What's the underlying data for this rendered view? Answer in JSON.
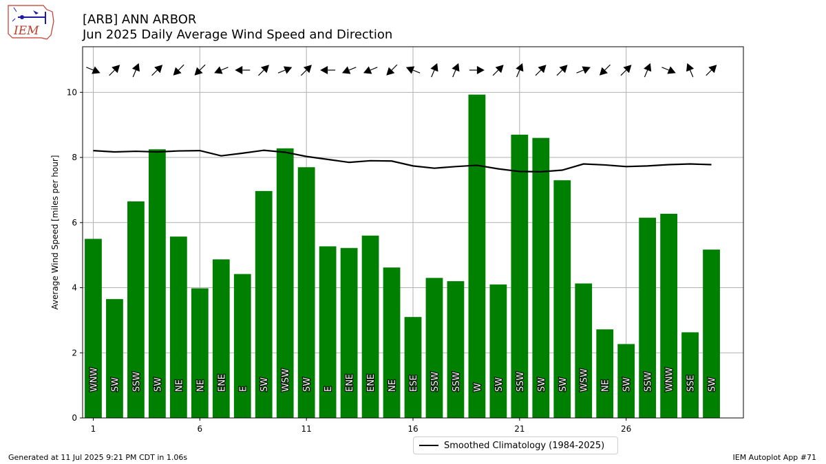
{
  "header": {
    "title_line1": "[ARB] ANN ARBOR",
    "title_line2": "Jun 2025 Daily Average Wind Speed and Direction",
    "logo_text": "IEM"
  },
  "footer": {
    "generated": "Generated at 11 Jul 2025 9:21 PM CDT in 1.06s",
    "app": "IEM Autoplot App #71"
  },
  "legend": {
    "climatology_label": "Smoothed Climatology (1984-2025)"
  },
  "colors": {
    "bar": "#008000",
    "climatology_line": "#000000",
    "grid": "#b0b0b0",
    "logo": "#c0392b"
  },
  "chart_data": {
    "type": "bar",
    "title": "[ARB] ANN ARBOR Jun 2025 Daily Average Wind Speed and Direction",
    "ylabel": "Average Wind Speed [miles per hour]",
    "xlabel": "",
    "xlim": [
      0.5,
      31.5
    ],
    "ylim": [
      0,
      11.4
    ],
    "xticks": [
      1,
      6,
      11,
      16,
      21,
      26
    ],
    "yticks": [
      0,
      2,
      4,
      6,
      8,
      10
    ],
    "grid": true,
    "legend_position": "bottom-center",
    "days": [
      1,
      2,
      3,
      4,
      5,
      6,
      7,
      8,
      9,
      10,
      11,
      12,
      13,
      14,
      15,
      16,
      17,
      18,
      19,
      20,
      21,
      22,
      23,
      24,
      25,
      26,
      27,
      28,
      29,
      30
    ],
    "values": [
      5.5,
      3.65,
      6.65,
      8.25,
      5.57,
      3.98,
      4.87,
      4.42,
      6.97,
      8.28,
      7.7,
      5.27,
      5.22,
      5.6,
      4.62,
      3.1,
      4.3,
      4.2,
      9.93,
      4.1,
      8.7,
      8.6,
      7.3,
      4.13,
      2.72,
      2.27,
      6.15,
      6.27,
      2.63,
      5.17
    ],
    "directions": [
      "WNW",
      "SW",
      "SSW",
      "SW",
      "NE",
      "NE",
      "ENE",
      "E",
      "SW",
      "WSW",
      "SW",
      "E",
      "ENE",
      "ENE",
      "NE",
      "ESE",
      "SSW",
      "SSW",
      "W",
      "SW",
      "SSW",
      "SW",
      "SW",
      "WSW",
      "NE",
      "SW",
      "SSW",
      "WNW",
      "SSE",
      "SW"
    ],
    "series": [
      {
        "name": "Smoothed Climatology (1984-2025)",
        "type": "line",
        "values": [
          8.21,
          8.17,
          8.19,
          8.17,
          8.2,
          8.21,
          8.05,
          8.13,
          8.22,
          8.16,
          8.03,
          7.94,
          7.85,
          7.9,
          7.89,
          7.74,
          7.67,
          7.72,
          7.76,
          7.65,
          7.57,
          7.56,
          7.61,
          7.8,
          7.77,
          7.72,
          7.74,
          7.78,
          7.8,
          7.78
        ]
      }
    ]
  }
}
